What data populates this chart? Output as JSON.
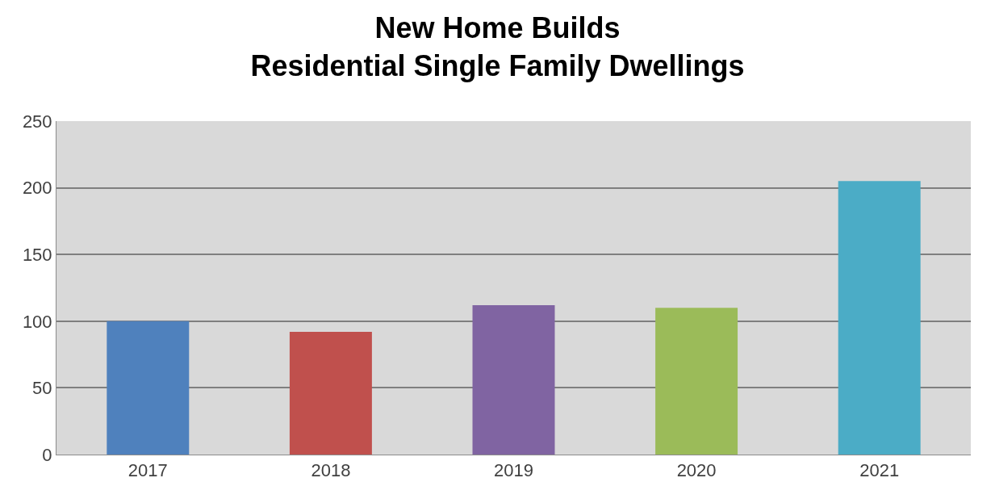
{
  "chart_data": {
    "type": "bar",
    "title": "New Home Builds\nResidential Single Family Dwellings",
    "categories": [
      "2017",
      "2018",
      "2019",
      "2020",
      "2021"
    ],
    "values": [
      100,
      92,
      112,
      110,
      205
    ],
    "colors": [
      "#4f81bd",
      "#c0504d",
      "#8064a2",
      "#9bbb59",
      "#4bacc6"
    ],
    "ylim": [
      0,
      250
    ],
    "yticks": [
      0,
      50,
      100,
      150,
      200,
      250
    ],
    "grid": "y"
  }
}
